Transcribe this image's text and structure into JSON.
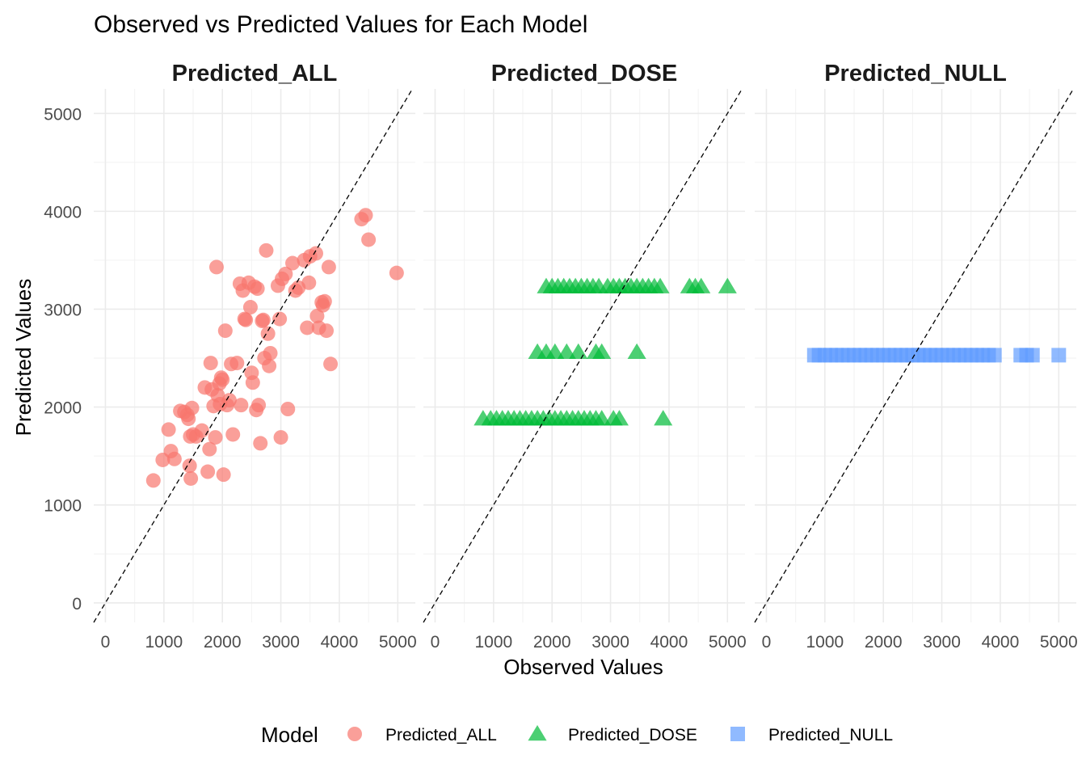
{
  "chart_data": {
    "type": "scatter",
    "title": "Observed vs Predicted Values for Each Model",
    "xlabel": "Observed Values",
    "ylabel": "Predicted Values",
    "xlim": [
      -200,
      5300
    ],
    "ylim": [
      -200,
      5250
    ],
    "x_ticks": [
      0,
      1000,
      2000,
      3000,
      4000,
      5000
    ],
    "y_ticks": [
      0,
      1000,
      2000,
      3000,
      4000,
      5000
    ],
    "grid": true,
    "reference_line": "y = x (dashed)",
    "legend": {
      "title": "Model",
      "position": "bottom",
      "entries": [
        {
          "label": "Predicted_ALL",
          "shape": "circle",
          "color": "#F8766D"
        },
        {
          "label": "Predicted_DOSE",
          "shape": "triangle",
          "color": "#00BA38"
        },
        {
          "label": "Predicted_NULL",
          "shape": "square",
          "color": "#619CFF"
        }
      ]
    },
    "panels": [
      {
        "name": "Predicted_ALL",
        "shape": "circle",
        "color": "#F8766D",
        "x": [
          820,
          980,
          1080,
          1120,
          1180,
          1280,
          1350,
          1400,
          1420,
          1440,
          1450,
          1460,
          1480,
          1500,
          1550,
          1650,
          1700,
          1750,
          1780,
          1800,
          1820,
          1850,
          1880,
          1900,
          1920,
          1950,
          1960,
          1980,
          2000,
          2020,
          2050,
          2080,
          2120,
          2150,
          2180,
          2250,
          2300,
          2320,
          2350,
          2380,
          2400,
          2450,
          2480,
          2500,
          2520,
          2550,
          2580,
          2600,
          2620,
          2650,
          2680,
          2700,
          2720,
          2750,
          2780,
          2800,
          2820,
          2950,
          2980,
          3000,
          3020,
          3080,
          3120,
          3200,
          3250,
          3300,
          3400,
          3450,
          3480,
          3500,
          3600,
          3620,
          3650,
          3700,
          3720,
          3750,
          3780,
          3820,
          3850,
          4380,
          4450,
          4500,
          4980
        ],
        "y": [
          1250,
          1460,
          1770,
          1550,
          1470,
          1960,
          1950,
          1920,
          1880,
          1400,
          1700,
          1270,
          1990,
          1720,
          1700,
          1760,
          2200,
          1340,
          1570,
          2450,
          2180,
          2010,
          1690,
          3430,
          2120,
          2240,
          2030,
          2300,
          2280,
          1310,
          2780,
          2020,
          2070,
          2440,
          1720,
          2450,
          3260,
          2020,
          3190,
          2900,
          2890,
          3270,
          3020,
          2350,
          2250,
          3230,
          1970,
          3210,
          2020,
          1630,
          2880,
          2890,
          2500,
          3600,
          2750,
          2420,
          2550,
          3240,
          2900,
          1690,
          3310,
          3360,
          1980,
          3470,
          3190,
          3220,
          3500,
          2810,
          3270,
          3540,
          3570,
          2930,
          2810,
          3070,
          3040,
          3080,
          2780,
          3430,
          2440,
          3920,
          3960,
          3710,
          3370
        ]
      },
      {
        "name": "Predicted_DOSE",
        "shape": "triangle",
        "color": "#00BA38",
        "x": [
          820,
          950,
          1050,
          1150,
          1250,
          1350,
          1450,
          1550,
          1650,
          1750,
          1850,
          1950,
          2050,
          2150,
          2250,
          2350,
          2450,
          2550,
          2650,
          2750,
          2850,
          3050,
          3150,
          3900,
          1750,
          1900,
          2050,
          2250,
          2450,
          2750,
          2850,
          3450,
          1900,
          2000,
          2100,
          2200,
          2300,
          2400,
          2500,
          2600,
          2700,
          2800,
          2950,
          3050,
          3150,
          3250,
          3350,
          3450,
          3550,
          3650,
          3750,
          3850,
          4350,
          4450,
          4550,
          5000
        ],
        "y": [
          1880,
          1880,
          1880,
          1880,
          1880,
          1880,
          1880,
          1880,
          1880,
          1880,
          1880,
          1880,
          1880,
          1880,
          1880,
          1880,
          1880,
          1880,
          1880,
          1880,
          1880,
          1880,
          1880,
          1880,
          2560,
          2560,
          2560,
          2560,
          2560,
          2560,
          2560,
          2560,
          3230,
          3230,
          3230,
          3230,
          3230,
          3230,
          3230,
          3230,
          3230,
          3230,
          3230,
          3230,
          3230,
          3230,
          3230,
          3230,
          3230,
          3230,
          3230,
          3230,
          3230,
          3230,
          3230,
          3230
        ]
      },
      {
        "name": "Predicted_NULL",
        "shape": "square",
        "color": "#619CFF",
        "x": [
          820,
          900,
          1000,
          1100,
          1200,
          1300,
          1400,
          1500,
          1600,
          1700,
          1800,
          1900,
          2000,
          2100,
          2200,
          2300,
          2400,
          2500,
          2600,
          2700,
          2800,
          2900,
          3000,
          3100,
          3200,
          3300,
          3400,
          3500,
          3600,
          3700,
          3800,
          3900,
          4350,
          4450,
          4550,
          5000
        ],
        "y": [
          2530,
          2530,
          2530,
          2530,
          2530,
          2530,
          2530,
          2530,
          2530,
          2530,
          2530,
          2530,
          2530,
          2530,
          2530,
          2530,
          2530,
          2530,
          2530,
          2530,
          2530,
          2530,
          2530,
          2530,
          2530,
          2530,
          2530,
          2530,
          2530,
          2530,
          2530,
          2530,
          2530,
          2530,
          2530,
          2530
        ]
      }
    ]
  }
}
